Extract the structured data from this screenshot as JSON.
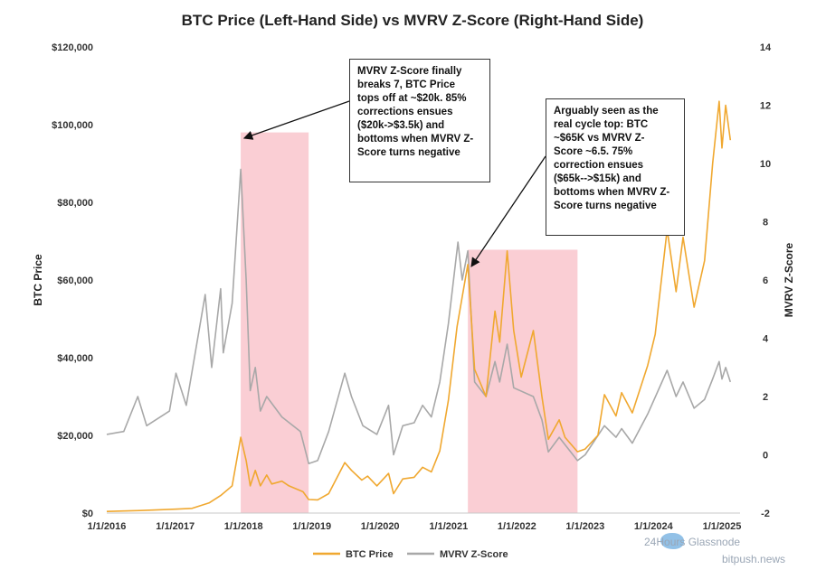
{
  "chart_data": {
    "type": "line",
    "title": "BTC Price (Left-Hand Side) vs MVRV Z-Score (Right-Hand Side)",
    "ylabel_left": "BTC Price",
    "ylabel_right": "MVRV Z-Score",
    "ylim_left": [
      0,
      120000
    ],
    "ylim_right": [
      -2,
      14
    ],
    "y_ticks_left": [
      "$0",
      "$20,000",
      "$40,000",
      "$60,000",
      "$80,000",
      "$100,000",
      "$120,000"
    ],
    "y_ticks_right": [
      "-2",
      "0",
      "2",
      "4",
      "6",
      "8",
      "10",
      "12",
      "14"
    ],
    "x_ticks": [
      "1/1/2016",
      "1/1/2017",
      "1/1/2018",
      "1/1/2019",
      "1/1/2020",
      "1/1/2021",
      "1/1/2022",
      "1/1/2023",
      "1/1/2024",
      "1/1/2025"
    ],
    "grid": false,
    "legend_position": "bottom",
    "series": [
      {
        "name": "BTC Price",
        "axis": "left",
        "color": "#f0a830",
        "points": [
          [
            "2016-01-01",
            430
          ],
          [
            "2016-07-01",
            650
          ],
          [
            "2017-01-01",
            1000
          ],
          [
            "2017-04-01",
            1200
          ],
          [
            "2017-07-01",
            2600
          ],
          [
            "2017-09-01",
            4500
          ],
          [
            "2017-11-01",
            7000
          ],
          [
            "2017-12-17",
            19500
          ],
          [
            "2018-01-15",
            13500
          ],
          [
            "2018-02-06",
            7000
          ],
          [
            "2018-03-05",
            11000
          ],
          [
            "2018-04-01",
            7000
          ],
          [
            "2018-05-05",
            9800
          ],
          [
            "2018-06-01",
            7500
          ],
          [
            "2018-07-25",
            8200
          ],
          [
            "2018-09-01",
            7000
          ],
          [
            "2018-11-15",
            5500
          ],
          [
            "2018-12-15",
            3500
          ],
          [
            "2019-02-01",
            3400
          ],
          [
            "2019-04-01",
            5000
          ],
          [
            "2019-06-26",
            13000
          ],
          [
            "2019-08-01",
            11000
          ],
          [
            "2019-09-25",
            8500
          ],
          [
            "2019-10-26",
            9500
          ],
          [
            "2019-12-15",
            7000
          ],
          [
            "2020-02-15",
            10200
          ],
          [
            "2020-03-13",
            5000
          ],
          [
            "2020-05-01",
            8800
          ],
          [
            "2020-07-01",
            9200
          ],
          [
            "2020-08-15",
            11800
          ],
          [
            "2020-10-01",
            10600
          ],
          [
            "2020-11-15",
            16000
          ],
          [
            "2020-12-31",
            29000
          ],
          [
            "2021-02-15",
            48000
          ],
          [
            "2021-04-14",
            64000
          ],
          [
            "2021-05-20",
            37000
          ],
          [
            "2021-07-20",
            30000
          ],
          [
            "2021-09-06",
            52000
          ],
          [
            "2021-10-01",
            44000
          ],
          [
            "2021-11-10",
            67500
          ],
          [
            "2021-12-15",
            47000
          ],
          [
            "2022-01-24",
            35000
          ],
          [
            "2022-03-30",
            47000
          ],
          [
            "2022-05-15",
            30000
          ],
          [
            "2022-06-18",
            19000
          ],
          [
            "2022-08-15",
            24000
          ],
          [
            "2022-09-15",
            19500
          ],
          [
            "2022-11-21",
            15800
          ],
          [
            "2023-01-01",
            16500
          ],
          [
            "2023-03-10",
            20000
          ],
          [
            "2023-04-14",
            30500
          ],
          [
            "2023-06-15",
            25000
          ],
          [
            "2023-07-15",
            31000
          ],
          [
            "2023-09-10",
            25800
          ],
          [
            "2023-12-01",
            38000
          ],
          [
            "2024-01-10",
            46000
          ],
          [
            "2024-03-14",
            73000
          ],
          [
            "2024-05-01",
            57000
          ],
          [
            "2024-06-07",
            71000
          ],
          [
            "2024-08-05",
            53000
          ],
          [
            "2024-09-30",
            65000
          ],
          [
            "2024-11-12",
            90000
          ],
          [
            "2024-12-17",
            106000
          ],
          [
            "2025-01-01",
            94000
          ],
          [
            "2025-01-21",
            105000
          ],
          [
            "2025-02-15",
            96000
          ]
        ]
      },
      {
        "name": "MVRV Z-Score",
        "axis": "right",
        "color": "#a8a8a8",
        "points": [
          [
            "2016-01-01",
            0.7
          ],
          [
            "2016-04-01",
            0.8
          ],
          [
            "2016-06-15",
            2.0
          ],
          [
            "2016-08-01",
            1.0
          ],
          [
            "2016-12-01",
            1.5
          ],
          [
            "2017-01-05",
            2.8
          ],
          [
            "2017-03-01",
            1.7
          ],
          [
            "2017-06-10",
            5.5
          ],
          [
            "2017-07-15",
            3.0
          ],
          [
            "2017-09-01",
            5.7
          ],
          [
            "2017-09-15",
            3.5
          ],
          [
            "2017-11-01",
            5.2
          ],
          [
            "2017-12-17",
            9.8
          ],
          [
            "2018-01-15",
            6.0
          ],
          [
            "2018-02-06",
            2.2
          ],
          [
            "2018-03-05",
            3.0
          ],
          [
            "2018-04-01",
            1.5
          ],
          [
            "2018-05-05",
            2.0
          ],
          [
            "2018-07-25",
            1.3
          ],
          [
            "2018-11-01",
            0.8
          ],
          [
            "2018-12-15",
            -0.3
          ],
          [
            "2019-02-01",
            -0.2
          ],
          [
            "2019-04-01",
            0.8
          ],
          [
            "2019-06-26",
            2.8
          ],
          [
            "2019-08-01",
            2.0
          ],
          [
            "2019-10-01",
            1.0
          ],
          [
            "2019-12-15",
            0.7
          ],
          [
            "2020-02-15",
            1.7
          ],
          [
            "2020-03-13",
            0.0
          ],
          [
            "2020-05-01",
            1.0
          ],
          [
            "2020-07-01",
            1.1
          ],
          [
            "2020-08-15",
            1.7
          ],
          [
            "2020-10-01",
            1.3
          ],
          [
            "2020-11-15",
            2.5
          ],
          [
            "2020-12-31",
            4.5
          ],
          [
            "2021-02-20",
            7.3
          ],
          [
            "2021-03-15",
            6.0
          ],
          [
            "2021-04-14",
            7.0
          ],
          [
            "2021-05-20",
            2.5
          ],
          [
            "2021-07-20",
            2.0
          ],
          [
            "2021-09-06",
            3.2
          ],
          [
            "2021-10-01",
            2.5
          ],
          [
            "2021-11-10",
            3.8
          ],
          [
            "2021-12-15",
            2.3
          ],
          [
            "2022-03-30",
            2.0
          ],
          [
            "2022-05-15",
            1.2
          ],
          [
            "2022-06-18",
            0.1
          ],
          [
            "2022-08-15",
            0.6
          ],
          [
            "2022-11-21",
            -0.2
          ],
          [
            "2023-01-01",
            0.0
          ],
          [
            "2023-04-14",
            1.0
          ],
          [
            "2023-06-15",
            0.6
          ],
          [
            "2023-07-15",
            0.9
          ],
          [
            "2023-09-10",
            0.4
          ],
          [
            "2023-12-01",
            1.4
          ],
          [
            "2024-03-14",
            2.9
          ],
          [
            "2024-05-01",
            2.0
          ],
          [
            "2024-06-07",
            2.5
          ],
          [
            "2024-08-05",
            1.6
          ],
          [
            "2024-09-30",
            1.9
          ],
          [
            "2024-11-12",
            2.6
          ],
          [
            "2024-12-17",
            3.2
          ],
          [
            "2025-01-01",
            2.6
          ],
          [
            "2025-01-21",
            3.0
          ],
          [
            "2025-02-15",
            2.5
          ]
        ]
      }
    ],
    "shaded_regions": [
      {
        "start": "2017-12-17",
        "end": "2018-12-15",
        "top": 98000,
        "color": "#f9c9cf"
      },
      {
        "start": "2021-04-14",
        "end": "2022-11-21",
        "top": 67800,
        "color": "#f9c9cf"
      }
    ],
    "annotations": [
      {
        "lines": [
          "MVRV Z-Score finally",
          "breaks 7, BTC Price",
          "tops off at ~$20k. 85%",
          "corrections ensues",
          "($20k->$3.5k) and",
          "bottoms when MVRV Z-",
          "Score turns negative"
        ],
        "arrow_to": [
          "2017-12-17",
          97000
        ]
      },
      {
        "lines": [
          "Arguably seen as the",
          "real cycle top: BTC",
          "~$65K vs MVRV Z-",
          "Score ~6.5. 75%",
          "correction ensues",
          "($65k-->$15k) and",
          "bottoms when MVRV Z-",
          "Score turns negative"
        ],
        "arrow_to": [
          "2021-04-14",
          64000
        ]
      }
    ]
  },
  "watermark": {
    "text_1": "24Hours Glassnode",
    "text_2": "bitpush.news",
    "mark_color": "#7fb6e3"
  }
}
